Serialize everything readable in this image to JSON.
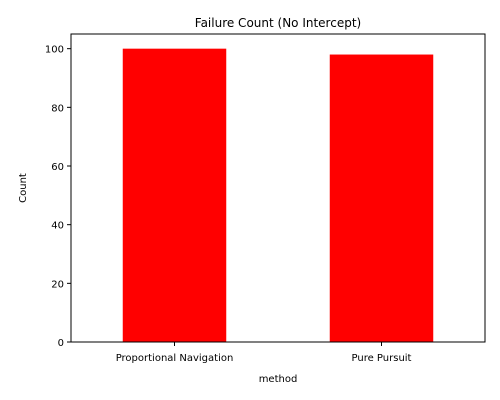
{
  "chart_data": {
    "type": "bar",
    "title": "Failure Count (No Intercept)",
    "xlabel": "method",
    "ylabel": "Count",
    "categories": [
      "Proportional Navigation",
      "Pure Pursuit"
    ],
    "values": [
      100,
      98
    ],
    "ylim": [
      0,
      105
    ],
    "yticks": [
      0,
      20,
      40,
      60,
      80,
      100
    ],
    "bar_color": "#ff0000",
    "grid": false,
    "legend": false
  }
}
